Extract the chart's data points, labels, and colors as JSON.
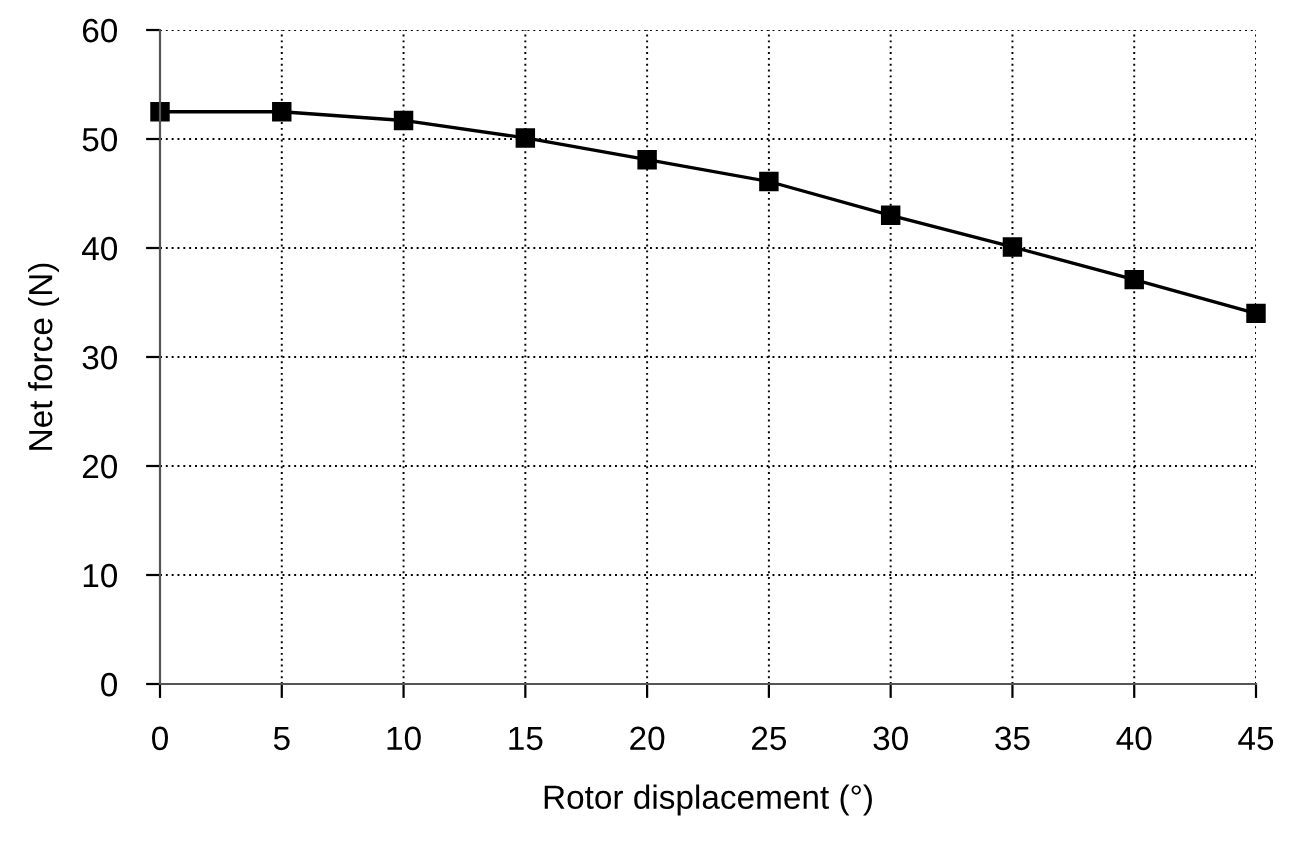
{
  "chart_data": {
    "type": "line",
    "xlabel": "Rotor displacement (°)",
    "ylabel": "Net force (N)",
    "x": [
      0,
      5,
      10,
      15,
      20,
      25,
      30,
      35,
      40,
      45
    ],
    "series": [
      {
        "color": "#000000",
        "values": [
          52.5,
          52.5,
          51.7,
          50.1,
          48.1,
          46.1,
          43.0,
          40.1,
          37.1,
          34.0
        ]
      }
    ],
    "xlim": [
      0,
      45
    ],
    "xticks": [
      0,
      5,
      10,
      15,
      20,
      25,
      30,
      35,
      40,
      45
    ],
    "ylim": [
      0,
      60
    ],
    "yticks": [
      0,
      10,
      20,
      30,
      40,
      50,
      60
    ],
    "grid": true,
    "marker": "square",
    "line_style": "solid"
  }
}
